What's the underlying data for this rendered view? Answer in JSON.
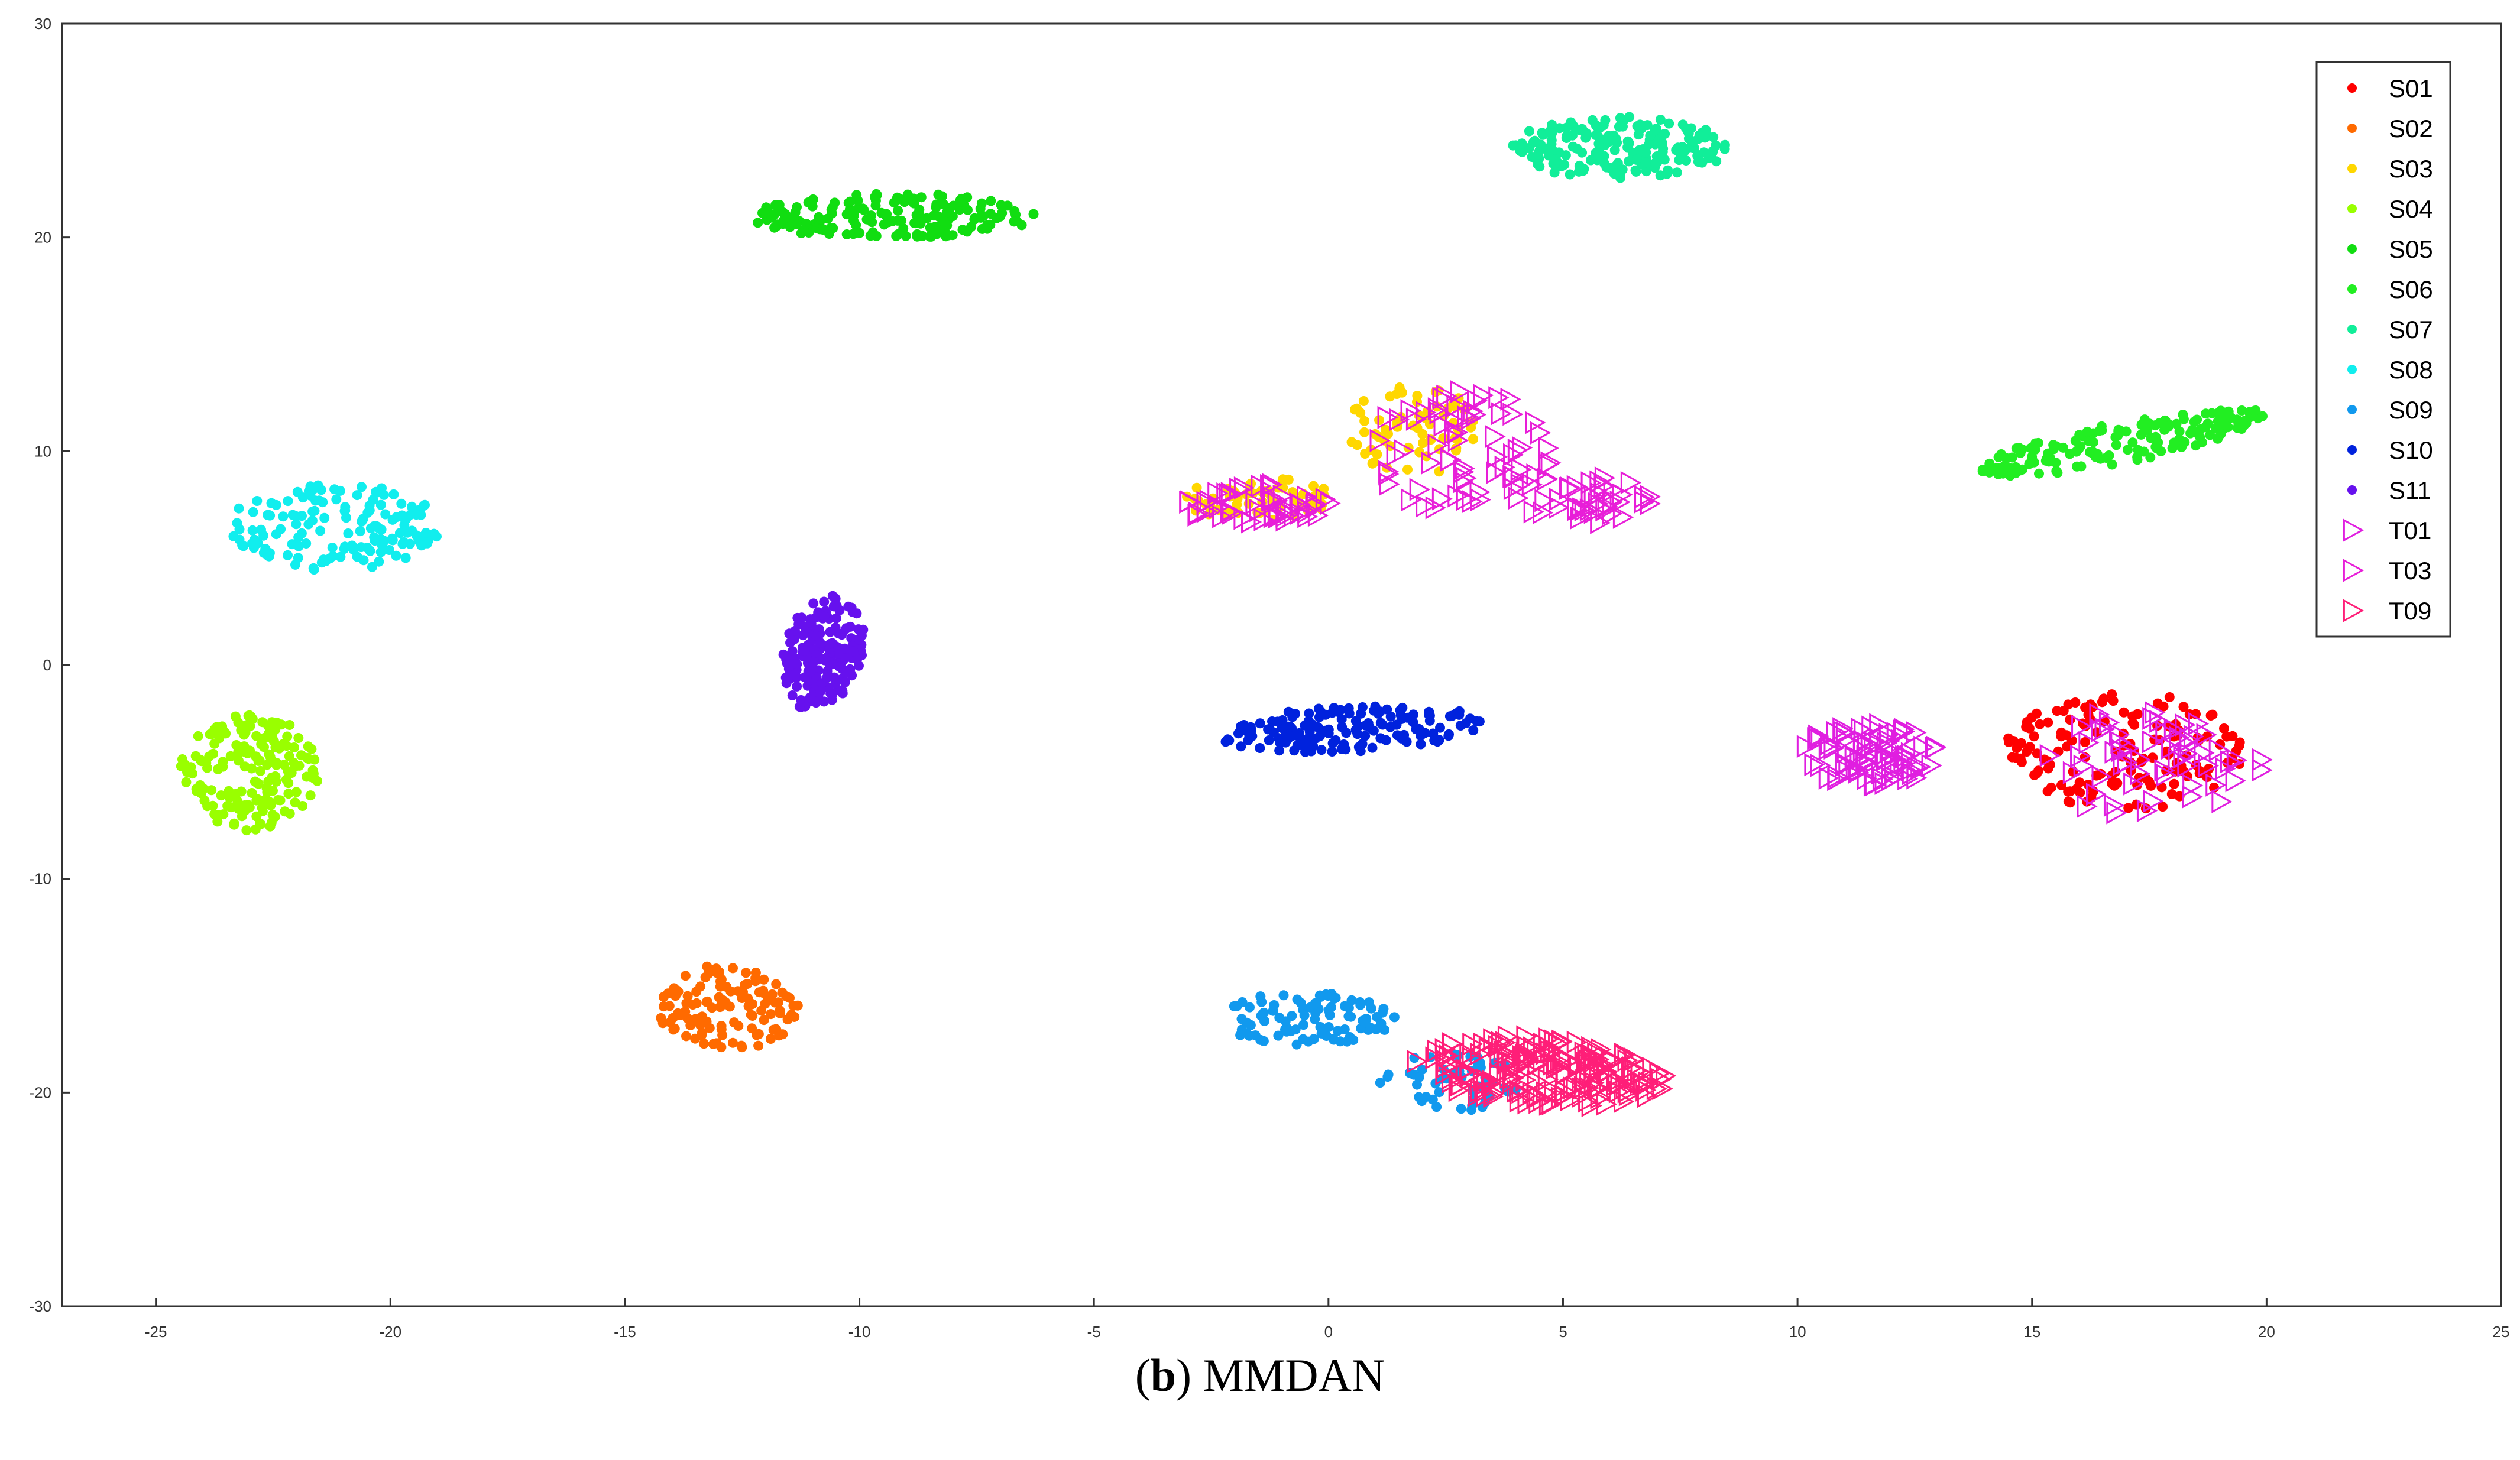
{
  "caption": {
    "letter": "b",
    "text": "MMDAN"
  },
  "chart_data": {
    "type": "scatter",
    "xlim": [
      -27,
      25
    ],
    "ylim": [
      -30,
      30
    ],
    "xticks": [
      -25,
      -20,
      -15,
      -10,
      -5,
      0,
      5,
      10,
      15,
      20,
      25
    ],
    "yticks": [
      -30,
      -20,
      -10,
      0,
      10,
      20,
      30
    ],
    "legend_position": "top-right",
    "grid": false,
    "series": [
      {
        "name": "S01",
        "marker": "dot",
        "color": "#ff0000",
        "clusters": [
          {
            "cx": 17.0,
            "cy": -4.0,
            "rx": 2.6,
            "ry": 2.8,
            "rot": 0,
            "n": 150
          }
        ]
      },
      {
        "name": "S02",
        "marker": "dot",
        "color": "#ff6a00",
        "clusters": [
          {
            "cx": -12.8,
            "cy": -16.0,
            "rx": 1.6,
            "ry": 2.0,
            "rot": 0,
            "n": 120
          }
        ]
      },
      {
        "name": "S03",
        "marker": "dot",
        "color": "#ffd700",
        "clusters": [
          {
            "cx": -1.5,
            "cy": 7.8,
            "rx": 1.6,
            "ry": 1.1,
            "rot": 0,
            "n": 60
          },
          {
            "cx": 1.8,
            "cy": 11.0,
            "rx": 1.4,
            "ry": 2.4,
            "rot": 0,
            "n": 70
          }
        ]
      },
      {
        "name": "S04",
        "marker": "dot",
        "color": "#99ff00",
        "clusters": [
          {
            "cx": -23.0,
            "cy": -5.0,
            "rx": 1.5,
            "ry": 2.8,
            "rot": 0,
            "n": 180
          }
        ]
      },
      {
        "name": "S05",
        "marker": "dot",
        "color": "#11dd11",
        "clusters": [
          {
            "cx": -9.3,
            "cy": 21.0,
            "rx": 3.1,
            "ry": 1.1,
            "rot": 0,
            "n": 180
          }
        ]
      },
      {
        "name": "S06",
        "marker": "dot",
        "color": "#22ee22",
        "clusters": [
          {
            "cx": 16.9,
            "cy": 10.4,
            "rx": 3.4,
            "ry": 0.9,
            "rot": 0.42,
            "n": 160
          }
        ]
      },
      {
        "name": "S07",
        "marker": "dot",
        "color": "#11ee99",
        "clusters": [
          {
            "cx": 6.2,
            "cy": 24.2,
            "rx": 2.4,
            "ry": 1.5,
            "rot": 0,
            "n": 190
          }
        ]
      },
      {
        "name": "S08",
        "marker": "dot",
        "color": "#11eeee",
        "clusters": [
          {
            "cx": -21.2,
            "cy": 6.5,
            "rx": 2.3,
            "ry": 2.1,
            "rot": 0,
            "n": 150
          }
        ]
      },
      {
        "name": "S09",
        "marker": "dot",
        "color": "#1199ee",
        "clusters": [
          {
            "cx": -0.5,
            "cy": -16.5,
            "rx": 2.0,
            "ry": 1.3,
            "rot": 0,
            "n": 90
          },
          {
            "cx": 2.5,
            "cy": -19.5,
            "rx": 1.6,
            "ry": 1.4,
            "rot": 0,
            "n": 50
          }
        ]
      },
      {
        "name": "S10",
        "marker": "dot",
        "color": "#0022dd",
        "clusters": [
          {
            "cx": 0.5,
            "cy": -3.0,
            "rx": 2.9,
            "ry": 1.1,
            "rot": 0.12,
            "n": 150
          }
        ]
      },
      {
        "name": "S11",
        "marker": "dot",
        "color": "#6611ee",
        "clusters": [
          {
            "cx": -10.8,
            "cy": 0.6,
            "rx": 0.9,
            "ry": 2.7,
            "rot": -0.1,
            "n": 180
          }
        ]
      },
      {
        "name": "T01",
        "marker": "triangle-right",
        "color": "#e01ee0",
        "clusters": [
          {
            "cx": 11.5,
            "cy": -4.2,
            "rx": 1.5,
            "ry": 1.5,
            "rot": 0,
            "n": 80
          },
          {
            "cx": 17.5,
            "cy": -4.5,
            "rx": 2.5,
            "ry": 2.6,
            "rot": 0,
            "n": 60
          }
        ]
      },
      {
        "name": "T03",
        "marker": "triangle-right",
        "color": "#e81ed8",
        "clusters": [
          {
            "cx": -1.5,
            "cy": 7.5,
            "rx": 1.6,
            "ry": 1.0,
            "rot": 0,
            "n": 50
          },
          {
            "cx": 2.8,
            "cy": 10.0,
            "rx": 2.0,
            "ry": 3.0,
            "rot": 0,
            "n": 70
          },
          {
            "cx": 5.5,
            "cy": 7.8,
            "rx": 1.5,
            "ry": 1.2,
            "rot": 0,
            "n": 40
          }
        ]
      },
      {
        "name": "T09",
        "marker": "triangle-right",
        "color": "#ff1e78",
        "clusters": [
          {
            "cx": 4.5,
            "cy": -19.0,
            "rx": 2.8,
            "ry": 1.6,
            "rot": -0.22,
            "n": 180
          }
        ]
      }
    ]
  }
}
